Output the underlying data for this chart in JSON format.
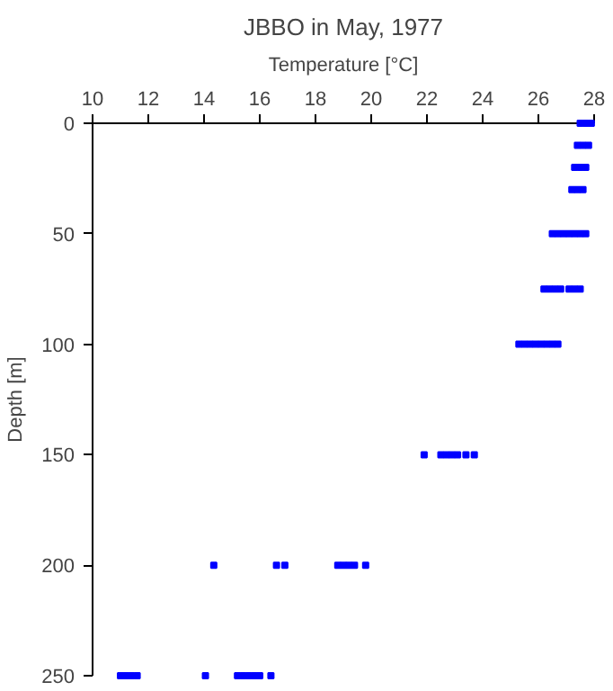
{
  "chart_data": {
    "type": "scatter",
    "title": "JBBO in May, 1977",
    "xlabel": "Temperature [°C]",
    "ylabel": "Depth [m]",
    "x": [
      27.5,
      27.7,
      27.9,
      27.4,
      27.6,
      27.8,
      27.3,
      27.5,
      27.7,
      27.2,
      27.4,
      27.6,
      26.5,
      26.7,
      26.9,
      27.1,
      27.3,
      27.5,
      27.7,
      26.2,
      26.4,
      26.6,
      26.8,
      27.1,
      27.3,
      27.5,
      25.3,
      25.5,
      25.7,
      25.9,
      26.1,
      26.3,
      26.5,
      26.7,
      21.9,
      22.5,
      22.7,
      22.9,
      23.1,
      23.4,
      23.7,
      14.35,
      16.6,
      16.9,
      18.8,
      19.0,
      19.2,
      19.4,
      19.8,
      11.0,
      11.2,
      11.4,
      11.6,
      14.05,
      15.2,
      15.4,
      15.6,
      15.8,
      16.0,
      16.4
    ],
    "series": [
      {
        "color": "#0000ff",
        "values": [
          0,
          0,
          0,
          10,
          10,
          10,
          20,
          20,
          20,
          30,
          30,
          30,
          50,
          50,
          50,
          50,
          50,
          50,
          50,
          75,
          75,
          75,
          75,
          75,
          75,
          75,
          100,
          100,
          100,
          100,
          100,
          100,
          100,
          100,
          150,
          150,
          150,
          150,
          150,
          150,
          150,
          200,
          200,
          200,
          200,
          200,
          200,
          200,
          200,
          250,
          250,
          250,
          250,
          250,
          250,
          250,
          250,
          250,
          250,
          250
        ]
      }
    ],
    "xlim": [
      10,
      28
    ],
    "xticks": [
      10,
      12,
      14,
      16,
      18,
      20,
      22,
      24,
      26,
      28
    ],
    "ylim": [
      250,
      0
    ],
    "yticks": [
      0,
      50,
      100,
      150,
      200,
      250
    ],
    "marker": "square",
    "grid": false
  }
}
